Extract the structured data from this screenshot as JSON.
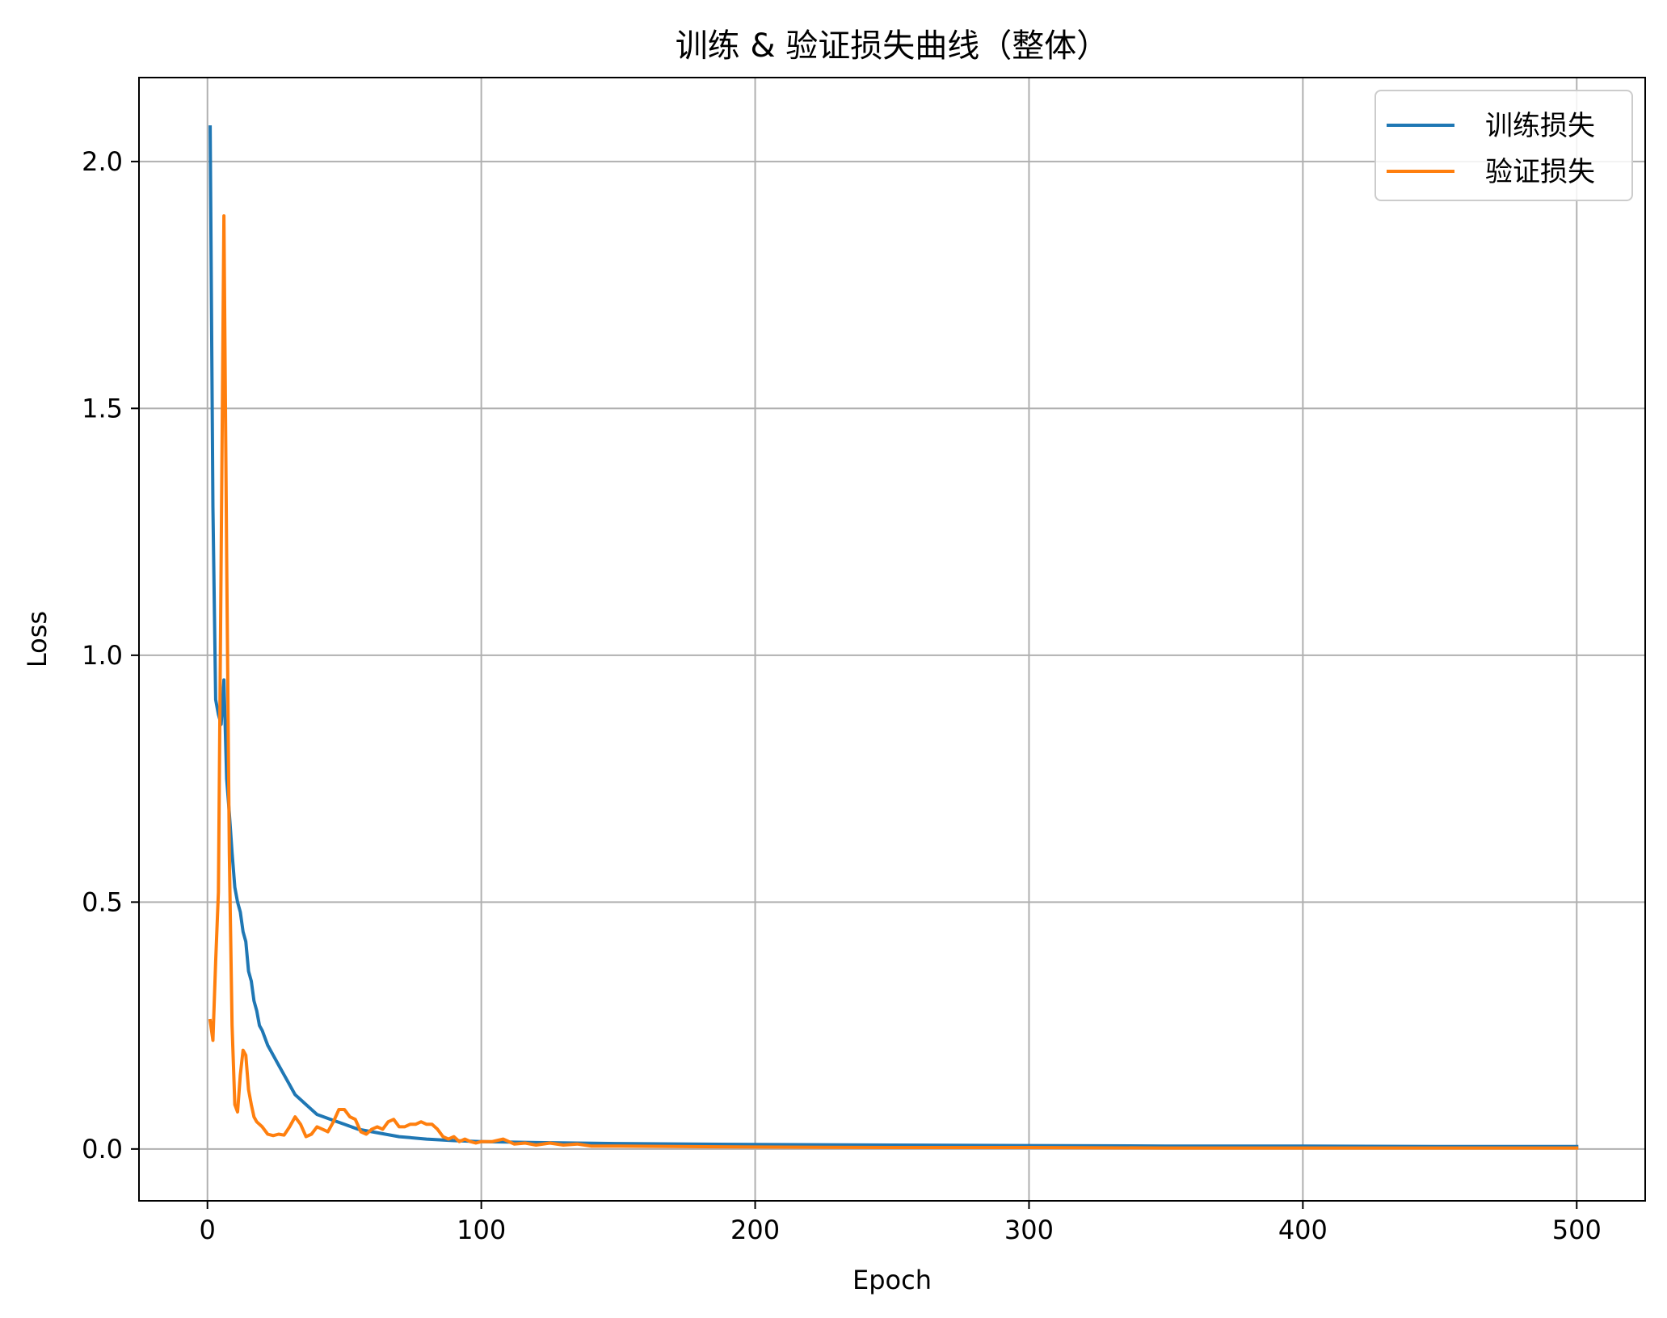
{
  "chart_data": {
    "type": "line",
    "title": "训练 & 验证损失曲线（整体）",
    "xlabel": "Epoch",
    "ylabel": "Loss",
    "xlim": [
      -25,
      525
    ],
    "ylim": [
      -0.105,
      2.17
    ],
    "xticks": [
      0,
      100,
      200,
      300,
      400,
      500
    ],
    "xtick_labels": [
      "0",
      "100",
      "200",
      "300",
      "400",
      "500"
    ],
    "yticks": [
      0.0,
      0.5,
      1.0,
      1.5,
      2.0
    ],
    "ytick_labels": [
      "0.0",
      "0.5",
      "1.0",
      "1.5",
      "2.0"
    ],
    "grid": true,
    "legend_position": "top-right",
    "series": [
      {
        "name": "训练损失",
        "color": "#1f77b4",
        "x": [
          1,
          2,
          3,
          4,
          5,
          6,
          7,
          8,
          9,
          10,
          11,
          12,
          13,
          14,
          15,
          16,
          17,
          18,
          19,
          20,
          22,
          24,
          26,
          28,
          30,
          32,
          34,
          36,
          38,
          40,
          45,
          50,
          55,
          60,
          70,
          80,
          90,
          100,
          120,
          150,
          200,
          250,
          300,
          350,
          400,
          450,
          500
        ],
        "y": [
          2.07,
          1.3,
          0.91,
          0.88,
          0.86,
          0.95,
          0.75,
          0.68,
          0.6,
          0.53,
          0.5,
          0.48,
          0.44,
          0.42,
          0.36,
          0.34,
          0.3,
          0.28,
          0.25,
          0.24,
          0.21,
          0.19,
          0.17,
          0.15,
          0.13,
          0.11,
          0.1,
          0.09,
          0.08,
          0.07,
          0.06,
          0.05,
          0.04,
          0.035,
          0.025,
          0.02,
          0.017,
          0.015,
          0.013,
          0.011,
          0.009,
          0.008,
          0.007,
          0.006,
          0.006,
          0.005,
          0.005
        ]
      },
      {
        "name": "验证损失",
        "color": "#ff7f0e",
        "x": [
          1,
          2,
          3,
          4,
          5,
          6,
          7,
          8,
          9,
          10,
          11,
          12,
          13,
          14,
          15,
          16,
          17,
          18,
          20,
          22,
          24,
          26,
          28,
          30,
          32,
          34,
          36,
          38,
          40,
          42,
          44,
          46,
          48,
          50,
          52,
          54,
          56,
          58,
          60,
          62,
          64,
          66,
          68,
          70,
          72,
          74,
          76,
          78,
          80,
          82,
          84,
          86,
          88,
          90,
          92,
          94,
          96,
          98,
          100,
          104,
          108,
          112,
          116,
          120,
          125,
          130,
          135,
          140,
          150,
          200,
          250,
          300,
          350,
          400,
          450,
          500
        ],
        "y": [
          0.26,
          0.22,
          0.38,
          0.52,
          1.2,
          1.89,
          1.2,
          0.6,
          0.25,
          0.09,
          0.075,
          0.15,
          0.2,
          0.19,
          0.12,
          0.09,
          0.065,
          0.055,
          0.045,
          0.03,
          0.027,
          0.03,
          0.028,
          0.045,
          0.065,
          0.05,
          0.025,
          0.03,
          0.045,
          0.04,
          0.035,
          0.055,
          0.08,
          0.08,
          0.065,
          0.06,
          0.035,
          0.03,
          0.04,
          0.045,
          0.04,
          0.055,
          0.06,
          0.045,
          0.045,
          0.05,
          0.05,
          0.055,
          0.05,
          0.05,
          0.04,
          0.025,
          0.02,
          0.025,
          0.015,
          0.02,
          0.015,
          0.012,
          0.015,
          0.015,
          0.02,
          0.01,
          0.012,
          0.008,
          0.012,
          0.008,
          0.01,
          0.006,
          0.006,
          0.004,
          0.003,
          0.003,
          0.002,
          0.002,
          0.002,
          0.002
        ]
      }
    ]
  }
}
